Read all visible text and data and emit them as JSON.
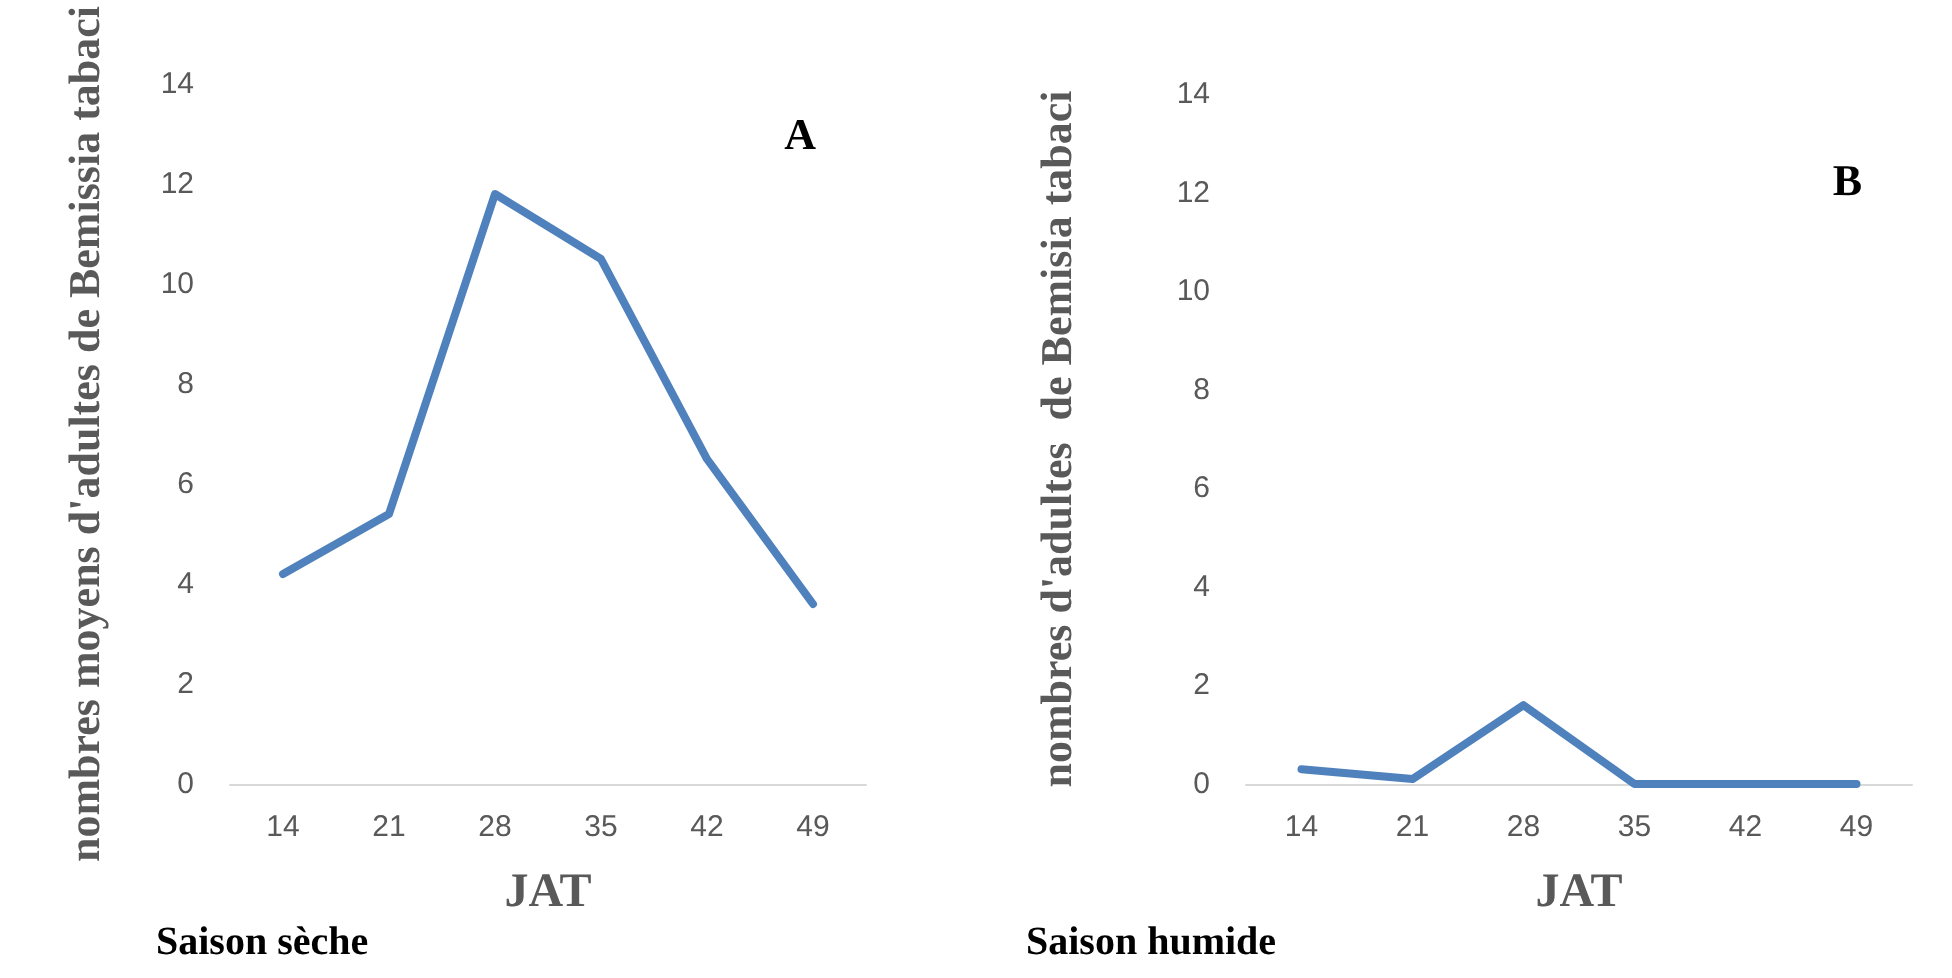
{
  "chart_data": [
    {
      "type": "line",
      "xlabel": "JAT",
      "ylabel": "nombres moyens d'adultes de Bemissia tabaci",
      "categories": [
        "14",
        "21",
        "28",
        "35",
        "42",
        "49"
      ],
      "series": [
        {
          "color": "#4f81bd",
          "values": [
            4.2,
            5.4,
            11.8,
            10.5,
            6.5,
            3.6
          ]
        }
      ],
      "ylim": [
        0,
        14
      ],
      "yticks": [
        0,
        2,
        4,
        6,
        8,
        10,
        12,
        14
      ],
      "grid": false,
      "marker": "none",
      "line_style": "solid",
      "annotations": [
        "A",
        "Saison sèche"
      ]
    },
    {
      "type": "line",
      "xlabel": "JAT",
      "ylabel": "nombres d'adultes  de Bemisia tabaci",
      "categories": [
        "14",
        "21",
        "28",
        "35",
        "42",
        "49"
      ],
      "series": [
        {
          "color": "#4f81bd",
          "values": [
            0.3,
            0.1,
            1.6,
            0,
            0,
            0
          ]
        }
      ],
      "ylim": [
        0,
        14
      ],
      "yticks": [
        0,
        2,
        4,
        6,
        8,
        10,
        12,
        14
      ],
      "grid": false,
      "marker": "none",
      "line_style": "solid",
      "annotations": [
        "B",
        "Saison humide"
      ]
    }
  ]
}
